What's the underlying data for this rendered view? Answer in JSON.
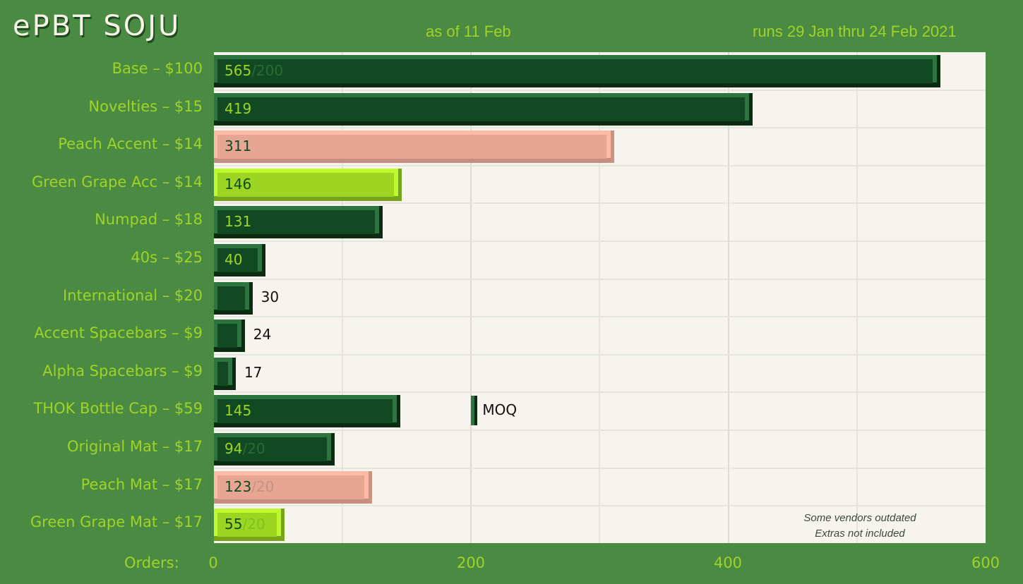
{
  "header": {
    "title": "ePBT SOJU",
    "as_of": "as of 11 Feb",
    "runs": "runs 29 Jan thru 24 Feb 2021"
  },
  "notes": {
    "line1": "Some vendors outdated",
    "line2": "Extras not included"
  },
  "axis": {
    "title": "Orders:",
    "ticks": [
      "0",
      "200",
      "400",
      "600"
    ]
  },
  "moq": {
    "label": "MOQ",
    "value": 200
  },
  "colors": {
    "background": "#4a8a43",
    "plot_bg": "#f7f4ee",
    "dark_green": "#114a22",
    "peach": "#e6a693",
    "lime": "#9cd622",
    "label_text": "#9ed427"
  },
  "rows": [
    {
      "label": "Base – $100",
      "value": "565",
      "target": "/200",
      "style": "dark"
    },
    {
      "label": "Novelties – $15",
      "value": "419",
      "target": "",
      "style": "dark"
    },
    {
      "label": "Peach Accent – $14",
      "value": "311",
      "target": "",
      "style": "peach"
    },
    {
      "label": "Green Grape Acc – $14",
      "value": "146",
      "target": "",
      "style": "lime"
    },
    {
      "label": "Numpad – $18",
      "value": "131",
      "target": "",
      "style": "dark"
    },
    {
      "label": "40s – $25",
      "value": "40",
      "target": "",
      "style": "dark"
    },
    {
      "label": "International – $20",
      "value": "30",
      "target": "",
      "style": "dark"
    },
    {
      "label": "Accent Spacebars – $9",
      "value": "24",
      "target": "",
      "style": "dark"
    },
    {
      "label": "Alpha Spacebars – $9",
      "value": "17",
      "target": "",
      "style": "dark"
    },
    {
      "label": "THOK Bottle Cap – $59",
      "value": "145",
      "target": "",
      "style": "dark"
    },
    {
      "label": "Original Mat – $17",
      "value": "94",
      "target": "/20",
      "style": "dark"
    },
    {
      "label": "Peach Mat – $17",
      "value": "123",
      "target": "/20",
      "style": "peach"
    },
    {
      "label": "Green Grape Mat – $17",
      "value": "55",
      "target": "/20",
      "style": "lime"
    }
  ],
  "chart_data": {
    "type": "bar",
    "orientation": "horizontal",
    "title": "ePBT SOJU",
    "subtitle": "as of 11 Feb — runs 29 Jan thru 24 Feb 2021",
    "categories": [
      "Base – $100",
      "Novelties – $15",
      "Peach Accent – $14",
      "Green Grape Acc – $14",
      "Numpad – $18",
      "40s – $25",
      "International – $20",
      "Accent Spacebars – $9",
      "Alpha Spacebars – $9",
      "THOK Bottle Cap – $59",
      "Original Mat – $17",
      "Peach Mat – $17",
      "Green Grape Mat – $17"
    ],
    "values": [
      565,
      419,
      311,
      146,
      131,
      40,
      30,
      24,
      17,
      145,
      94,
      123,
      55
    ],
    "targets": [
      200,
      null,
      null,
      null,
      null,
      null,
      null,
      null,
      null,
      200,
      20,
      20,
      20
    ],
    "bar_colors": [
      "dark",
      "dark",
      "peach",
      "lime",
      "dark",
      "dark",
      "dark",
      "dark",
      "dark",
      "dark",
      "dark",
      "peach",
      "lime"
    ],
    "xlabel": "Orders:",
    "ylabel": "",
    "xlim": [
      0,
      600
    ],
    "xticks": [
      0,
      200,
      400,
      600
    ],
    "grid": true,
    "annotations": [
      "MOQ (THOK Bottle Cap at 200)",
      "Some vendors outdated",
      "Extras not included"
    ]
  }
}
